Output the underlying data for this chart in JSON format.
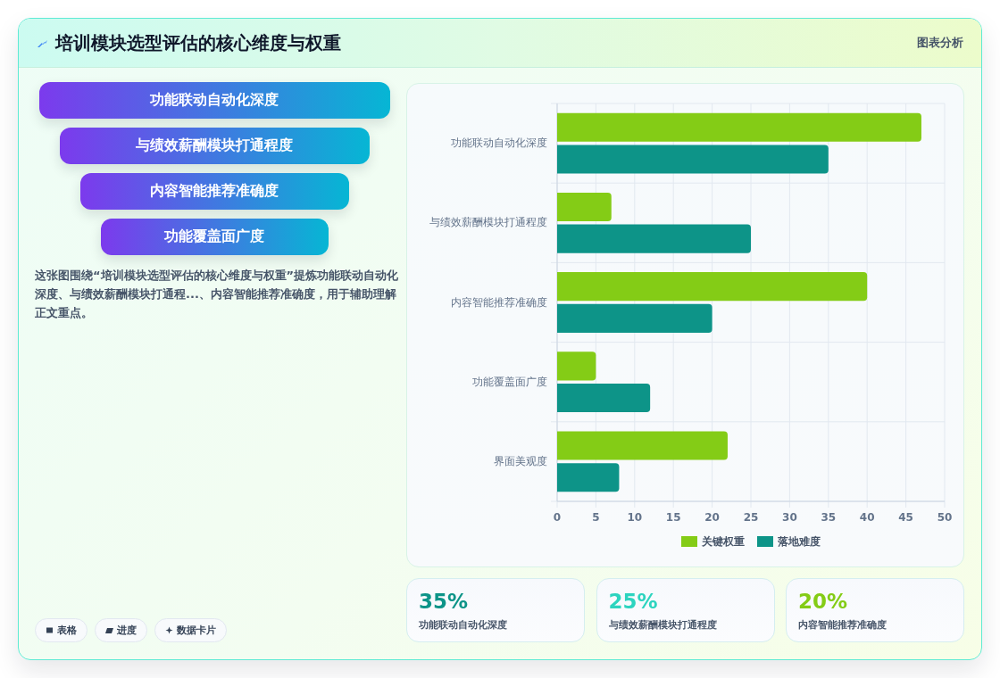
{
  "chart_data": [
    {
      "type": "other",
      "title": "培训模块选型评估的核心维度与权重",
      "subtitle": "图表分析",
      "categories": [
        "功能联动自动化深度",
        "与绩效薪酬模块打通程度",
        "内容智能推荐准确度",
        "功能覆盖面广度"
      ],
      "annotations": [
        "这张图围绕“培训模块选型评估的核心维度与权重”提炼功能联动自动化深度、与绩效薪酬模块打通程...、内容智能推荐准确度，用于辅助理解正文重点。",
        "表格",
        "进度",
        "数据卡片"
      ]
    },
    {
      "type": "bar",
      "orientation": "horizontal",
      "categories": [
        "功能联动自动化深度",
        "与绩效薪酬模块打通程度",
        "内容智能推荐准确度",
        "功能覆盖面广度",
        "界面美观度"
      ],
      "series": [
        {
          "name": "关键权重",
          "color": "#84cc16",
          "values": [
            47,
            7,
            40,
            5,
            22
          ]
        },
        {
          "name": "落地难度",
          "color": "#0d9488",
          "values": [
            35,
            25,
            20,
            12,
            8
          ]
        }
      ],
      "xlim": [
        0,
        50
      ],
      "xticks": [
        0,
        5,
        10,
        15,
        20,
        25,
        30,
        35,
        40,
        45,
        50
      ],
      "grid": true,
      "legend": "bottom"
    },
    {
      "type": "other",
      "categories": [
        "功能联动自动化深度",
        "与绩效薪酬模块打通程度",
        "内容智能推荐准确度"
      ],
      "annotations": [
        "35%",
        "25%",
        "20%"
      ]
    }
  ]
}
